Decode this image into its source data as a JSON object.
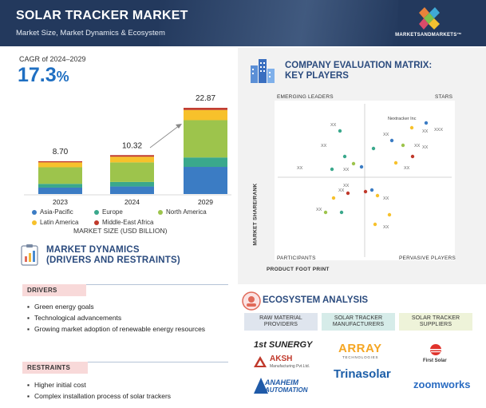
{
  "header": {
    "title": "SOLAR TRACKER MARKET",
    "subtitle": "Market Size, Market Dynamics & Ecosystem",
    "logo_text": "MARKETSANDMARKETS™"
  },
  "cagr": {
    "label": "CAGR of 2024–2029",
    "value": "17.3",
    "unit": "%"
  },
  "chart_data": {
    "type": "bar",
    "stacked": true,
    "categories": [
      "2023",
      "2024",
      "2029"
    ],
    "totals": [
      "8.70",
      "10.32",
      "22.87"
    ],
    "series": [
      {
        "name": "Asia-Pacific",
        "color": "#3b7cc4",
        "values": [
          1.7,
          2.0,
          7.2
        ]
      },
      {
        "name": "Europe",
        "color": "#3aa88c",
        "values": [
          1.0,
          1.2,
          2.5
        ]
      },
      {
        "name": "North America",
        "color": "#9dc44c",
        "values": [
          4.4,
          5.2,
          9.9
        ]
      },
      {
        "name": "Latin America",
        "color": "#f7c12b",
        "values": [
          1.3,
          1.5,
          2.7
        ]
      },
      {
        "name": "Middle-East Africa",
        "color": "#c0392b",
        "values": [
          0.3,
          0.42,
          0.57
        ]
      }
    ],
    "xlabel": "MARKET SIZE (USD BILLION)",
    "ylim": [
      0,
      25
    ]
  },
  "matrix": {
    "title_line1": "COMPANY EVALUATION MATRIX:",
    "title_line2": "KEY PLAYERS",
    "quadrants": {
      "top_left": "EMERGING LEADERS",
      "top_right": "STARS",
      "bottom_left": "PARTICIPANTS",
      "bottom_right": "PERVASIVE PLAYERS"
    },
    "y_axis": "MARKET SHARE/RANK",
    "x_axis": "PRODUCT FOOT PRINT",
    "highlight": "Nextracker Inc",
    "xx": "XX",
    "xxx": "XXX"
  },
  "dynamics": {
    "title_line1": "MARKET DYNAMICS",
    "title_line2": "(DRIVERS AND RESTRAINTS)",
    "drivers_label": "DRIVERS",
    "drivers": [
      "Green energy goals",
      "Technological advancements",
      "Growing market adoption of renewable energy resources"
    ],
    "restraints_label": "RESTRAINTS",
    "restraints": [
      "Higher initial cost",
      "Complex installation process of solar trackers"
    ]
  },
  "ecosystem": {
    "title": "ECOSYSTEM ANALYSIS",
    "columns": [
      {
        "label_line1": "RAW MATERIAL",
        "label_line2": "PROVIDERS",
        "color": "#dfe5ee"
      },
      {
        "label_line1": "SOLAR TRACKER",
        "label_line2": "MANUFACTURERS",
        "color": "#d6ece9"
      },
      {
        "label_line1": "SOLAR TRACKER",
        "label_line2": "SUPPLIERS",
        "color": "#eef3d9"
      }
    ],
    "brands": {
      "first_synergy": "1st SUNERGY",
      "aksh": "AKSH",
      "aksh_sub": "Manufacturing Pvt.Ltd.",
      "anaheim": "ANAHEIM",
      "anaheim_sub": "AUTOMATION",
      "array": "ARRAY",
      "array_sub": "TECHNOLOGIES",
      "trina": "Trinasolar",
      "first_solar": "First Solar",
      "zoomworks": "zoomworks"
    }
  }
}
